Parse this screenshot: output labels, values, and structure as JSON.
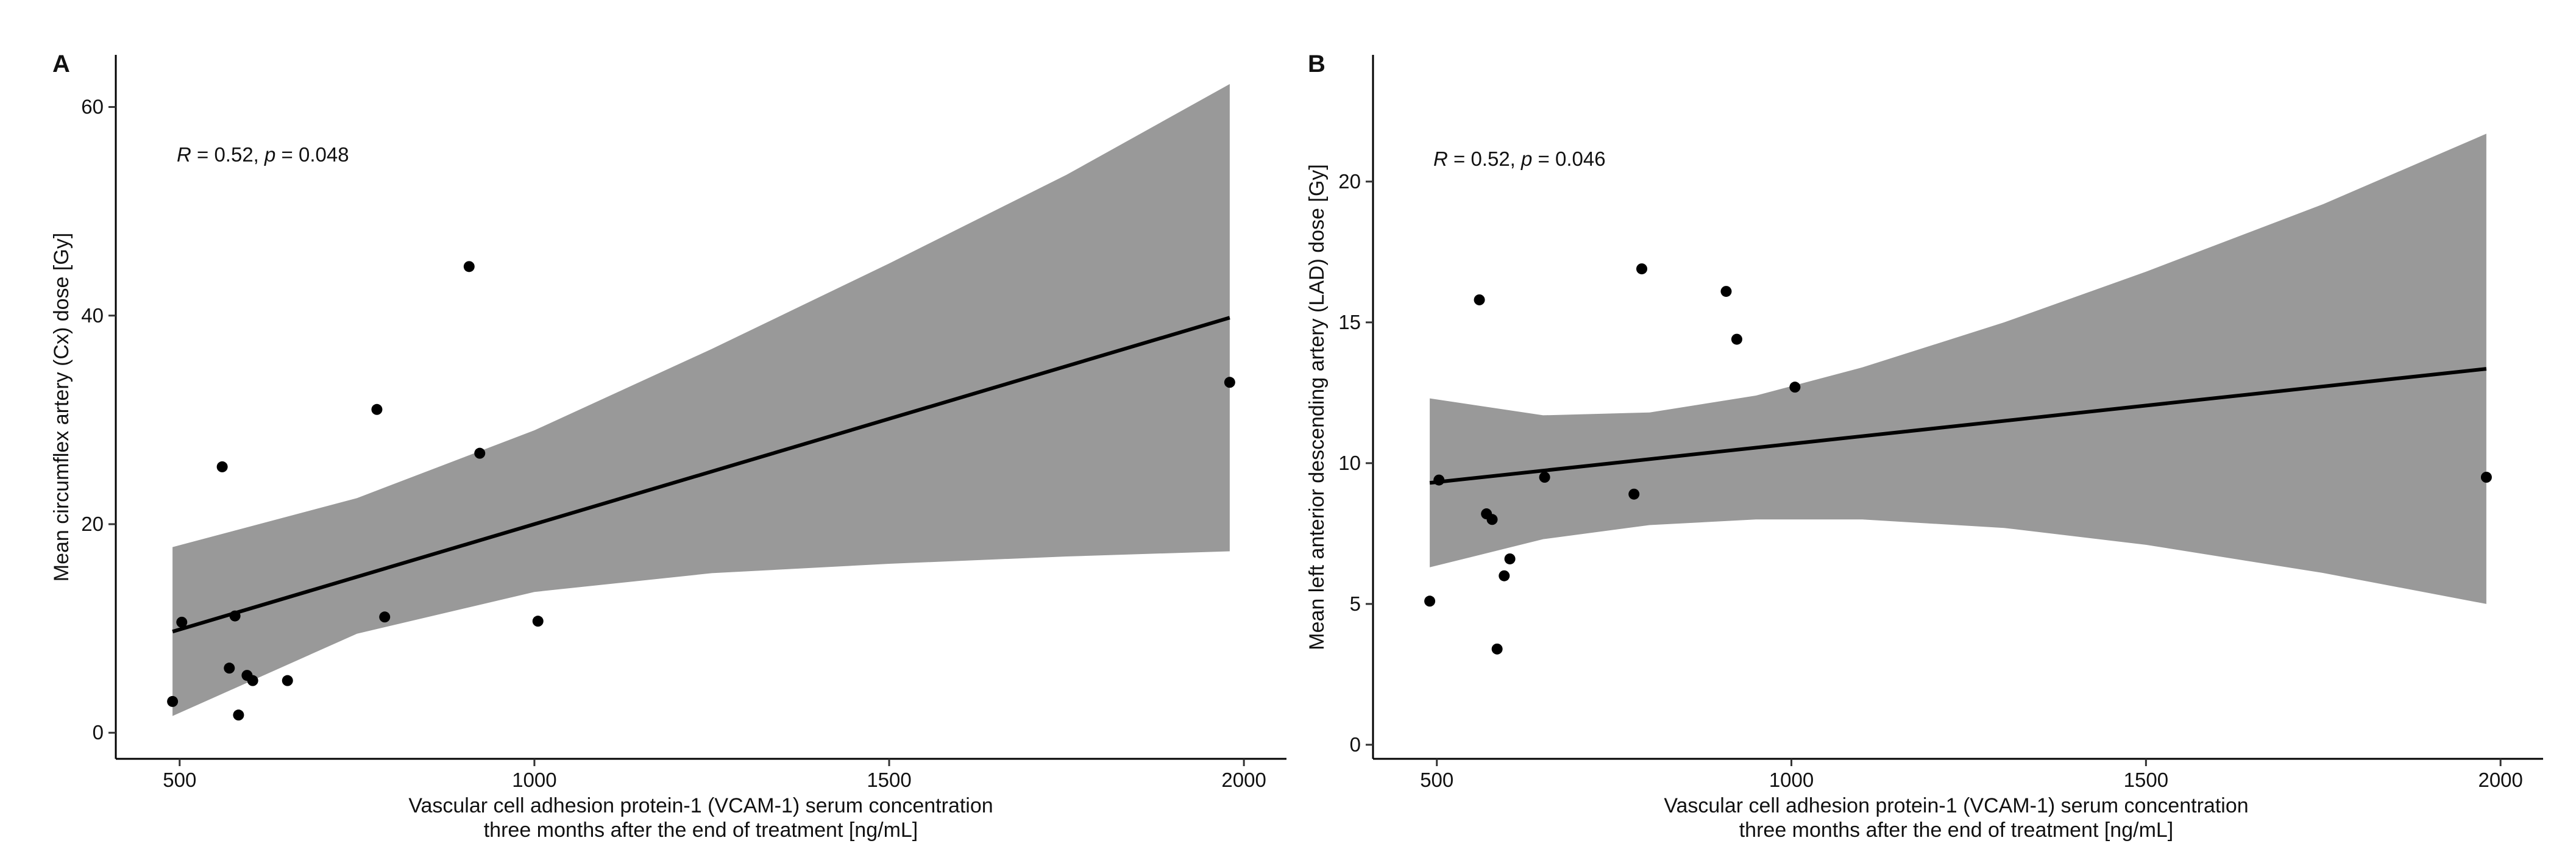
{
  "chart_data": [
    {
      "panel": "A",
      "type": "scatter",
      "title": "",
      "xlabel_line1": "Vascular cell adhesion protein-1 (VCAM-1) serum concentration",
      "xlabel_line2": "three months after the end of treatment [ng/mL]",
      "ylabel": "Mean circumflex artery (Cx) dose [Gy]",
      "xlim": [
        410,
        2060
      ],
      "ylim": [
        -2.5,
        65
      ],
      "xticks": [
        500,
        1000,
        1500,
        2000
      ],
      "yticks": [
        0,
        20,
        40,
        60
      ],
      "stat": {
        "r_label": "R",
        "r_value": " = 0.52, ",
        "p_label": "p",
        "p_value": " = 0.048"
      },
      "points": [
        {
          "x": 490,
          "y": 3.0
        },
        {
          "x": 503,
          "y": 10.6
        },
        {
          "x": 560,
          "y": 25.5
        },
        {
          "x": 570,
          "y": 6.2
        },
        {
          "x": 578,
          "y": 11.2
        },
        {
          "x": 583,
          "y": 1.7
        },
        {
          "x": 595,
          "y": 5.5
        },
        {
          "x": 603,
          "y": 5.0
        },
        {
          "x": 652,
          "y": 5.0
        },
        {
          "x": 778,
          "y": 31.0
        },
        {
          "x": 789,
          "y": 11.1
        },
        {
          "x": 908,
          "y": 44.7
        },
        {
          "x": 923,
          "y": 26.8
        },
        {
          "x": 1005,
          "y": 10.7
        },
        {
          "x": 1980,
          "y": 33.6
        }
      ],
      "fit": {
        "x": [
          490,
          1980
        ],
        "y": [
          9.7,
          39.8
        ]
      },
      "band": {
        "x": [
          490,
          750,
          1000,
          1250,
          1500,
          1750,
          1980
        ],
        "upper": [
          17.8,
          22.5,
          29.0,
          36.8,
          45.0,
          53.5,
          62.2
        ],
        "lower": [
          1.6,
          9.5,
          13.5,
          15.3,
          16.2,
          16.9,
          17.4
        ]
      }
    },
    {
      "panel": "B",
      "type": "scatter",
      "title": "",
      "xlabel_line1": "Vascular cell adhesion protein-1 (VCAM-1) serum concentration",
      "xlabel_line2": "three months after the end of treatment [ng/mL]",
      "ylabel": "Mean left anterior descending artery (LAD) dose [Gy]",
      "xlim": [
        410,
        2060
      ],
      "ylim": [
        -0.5,
        24.5
      ],
      "xticks": [
        500,
        1000,
        1500,
        2000
      ],
      "yticks": [
        0,
        5,
        10,
        15,
        20
      ],
      "stat": {
        "r_label": "R",
        "r_value": " = 0.52, ",
        "p_label": "p",
        "p_value": " = 0.046"
      },
      "points": [
        {
          "x": 490,
          "y": 5.1
        },
        {
          "x": 503,
          "y": 9.4
        },
        {
          "x": 560,
          "y": 15.8
        },
        {
          "x": 570,
          "y": 8.2
        },
        {
          "x": 578,
          "y": 8.0
        },
        {
          "x": 585,
          "y": 3.4
        },
        {
          "x": 595,
          "y": 6.0
        },
        {
          "x": 603,
          "y": 6.6
        },
        {
          "x": 652,
          "y": 9.5
        },
        {
          "x": 778,
          "y": 8.9
        },
        {
          "x": 789,
          "y": 16.9
        },
        {
          "x": 908,
          "y": 16.1
        },
        {
          "x": 923,
          "y": 14.4
        },
        {
          "x": 1005,
          "y": 12.7
        },
        {
          "x": 1980,
          "y": 9.5
        }
      ],
      "fit": {
        "x": [
          490,
          1980
        ],
        "y": [
          9.3,
          13.35
        ]
      },
      "band": {
        "x": [
          490,
          650,
          800,
          950,
          1100,
          1300,
          1500,
          1750,
          1980
        ],
        "upper": [
          12.3,
          11.7,
          11.8,
          12.4,
          13.4,
          15.0,
          16.8,
          19.2,
          21.7
        ],
        "lower": [
          6.3,
          7.3,
          7.8,
          8.0,
          8.0,
          7.7,
          7.1,
          6.1,
          5.0
        ]
      }
    }
  ]
}
